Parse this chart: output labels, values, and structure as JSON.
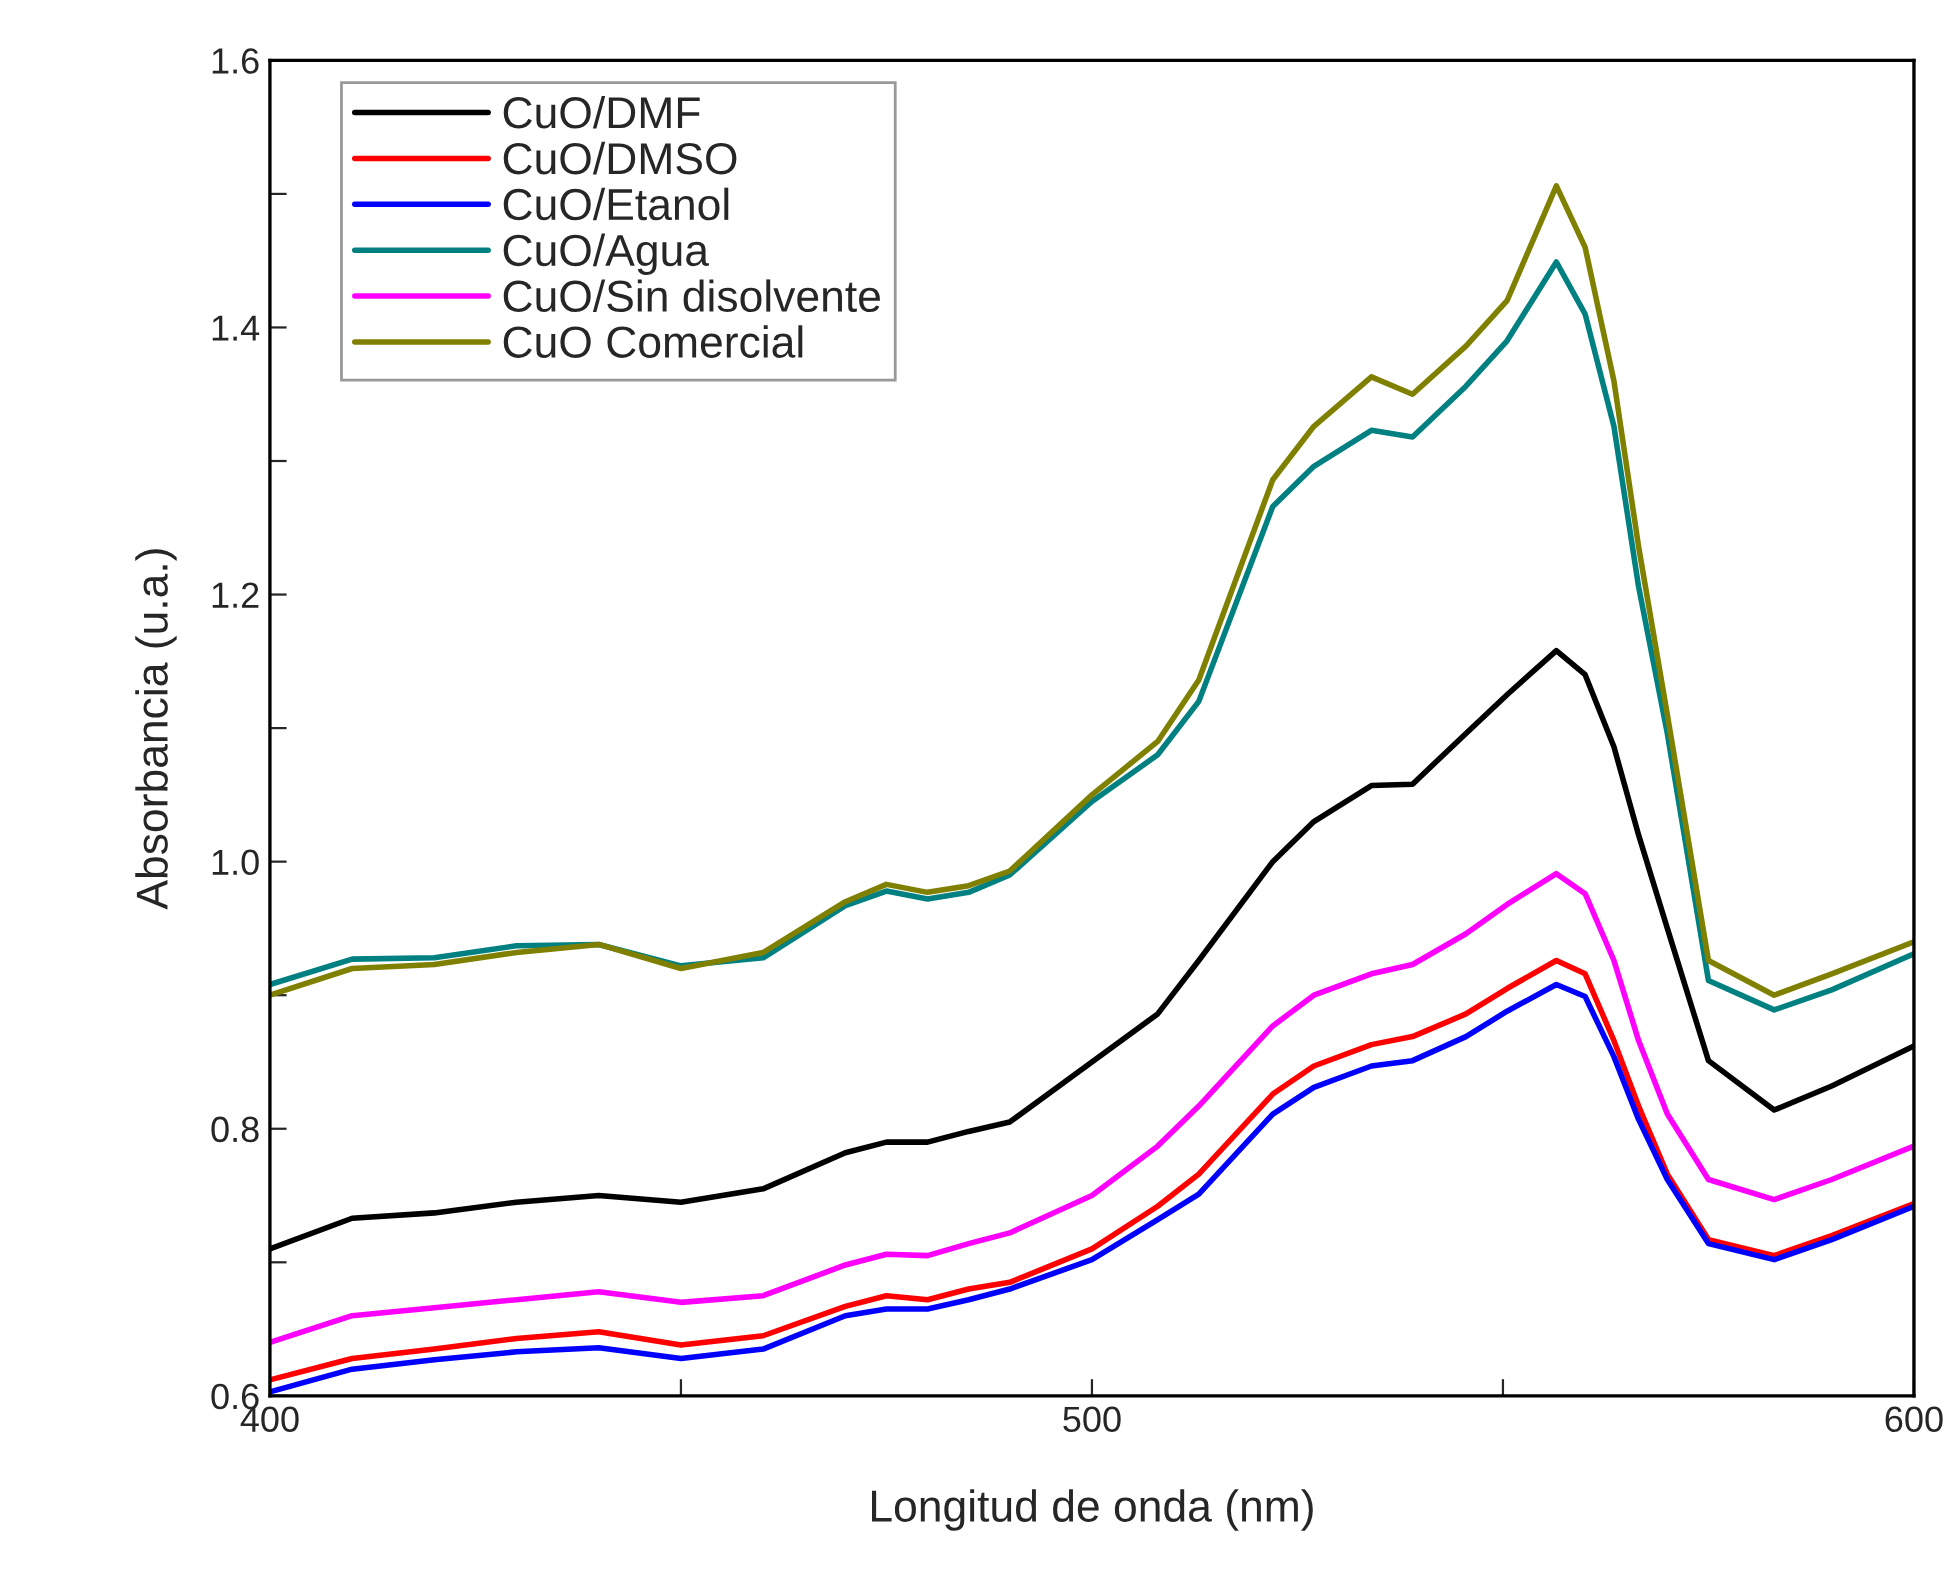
{
  "chart_data": {
    "type": "line",
    "xlabel": "Longitud de onda (nm)",
    "ylabel": "Absorbancia (u.a.)",
    "x": [
      400,
      410,
      420,
      430,
      440,
      450,
      460,
      470,
      475,
      480,
      485,
      490,
      500,
      508,
      513,
      522,
      527,
      534,
      539,
      545.5,
      550.5,
      556.5,
      560,
      563.5,
      566.5,
      570,
      575,
      583,
      590,
      600
    ],
    "series": [
      {
        "name": "CuO/DMF",
        "color": "#000000",
        "values": [
          0.71,
          0.733,
          0.737,
          0.745,
          0.75,
          0.745,
          0.755,
          0.782,
          0.79,
          0.79,
          0.798,
          0.805,
          0.85,
          0.886,
          0.926,
          1.0,
          1.03,
          1.057,
          1.058,
          1.096,
          1.125,
          1.158,
          1.14,
          1.086,
          1.02,
          0.95,
          0.851,
          0.814,
          0.832,
          0.862
        ]
      },
      {
        "name": "CuO/DMSO",
        "color": "#ff0000",
        "values": [
          0.612,
          0.628,
          0.635,
          0.643,
          0.648,
          0.638,
          0.645,
          0.667,
          0.675,
          0.672,
          0.68,
          0.685,
          0.71,
          0.742,
          0.766,
          0.826,
          0.847,
          0.863,
          0.869,
          0.886,
          0.905,
          0.926,
          0.916,
          0.866,
          0.817,
          0.766,
          0.717,
          0.705,
          0.72,
          0.744
        ]
      },
      {
        "name": "CuO/Etanol",
        "color": "#0000ff",
        "values": [
          0.603,
          0.62,
          0.627,
          0.633,
          0.636,
          0.628,
          0.635,
          0.66,
          0.665,
          0.665,
          0.672,
          0.68,
          0.702,
          0.732,
          0.751,
          0.811,
          0.831,
          0.847,
          0.851,
          0.869,
          0.888,
          0.908,
          0.899,
          0.854,
          0.807,
          0.762,
          0.714,
          0.702,
          0.717,
          0.742
        ]
      },
      {
        "name": "CuO/Agua",
        "color": "#008080",
        "values": [
          0.908,
          0.927,
          0.928,
          0.937,
          0.938,
          0.922,
          0.928,
          0.967,
          0.978,
          0.972,
          0.977,
          0.99,
          1.045,
          1.08,
          1.12,
          1.266,
          1.296,
          1.323,
          1.318,
          1.356,
          1.39,
          1.449,
          1.41,
          1.326,
          1.206,
          1.096,
          0.911,
          0.889,
          0.904,
          0.931
        ]
      },
      {
        "name": "CuO/Sin disolvente",
        "color": "#ff00ff",
        "values": [
          0.64,
          0.66,
          0.666,
          0.672,
          0.678,
          0.67,
          0.675,
          0.698,
          0.706,
          0.705,
          0.714,
          0.722,
          0.75,
          0.787,
          0.817,
          0.877,
          0.9,
          0.916,
          0.923,
          0.946,
          0.968,
          0.991,
          0.976,
          0.926,
          0.866,
          0.811,
          0.762,
          0.747,
          0.762,
          0.787
        ]
      },
      {
        "name": "CuO Comercial",
        "color": "#808000",
        "values": [
          0.9,
          0.92,
          0.923,
          0.932,
          0.938,
          0.92,
          0.932,
          0.97,
          0.983,
          0.977,
          0.982,
          0.993,
          1.05,
          1.09,
          1.136,
          1.286,
          1.326,
          1.363,
          1.35,
          1.386,
          1.42,
          1.506,
          1.46,
          1.36,
          1.236,
          1.11,
          0.926,
          0.9,
          0.916,
          0.94
        ]
      }
    ],
    "xlim": [
      400,
      600
    ],
    "ylim": [
      0.6,
      1.6
    ],
    "xticks": [
      400,
      {
        "value": 450,
        "label": null
      },
      500,
      {
        "value": 550,
        "label": null
      },
      600
    ],
    "yticks": [
      0.6,
      {
        "value": 0.7,
        "label": null
      },
      0.8,
      {
        "value": 0.9,
        "label": null
      },
      {
        "value": 1,
        "label": "1.0"
      },
      {
        "value": 1.1,
        "label": null
      },
      1.2,
      {
        "value": 1.3,
        "label": null
      },
      1.4,
      {
        "value": 1.5,
        "label": null
      },
      1.6
    ],
    "grid": false,
    "legend": "top left",
    "line_style": "solid",
    "marker": "none"
  }
}
